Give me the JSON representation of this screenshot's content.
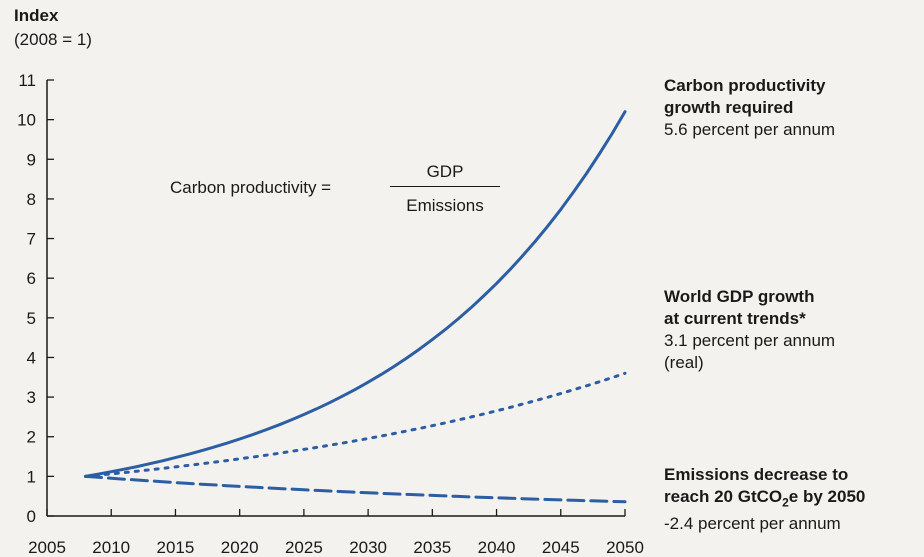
{
  "y_axis_title": {
    "line1": "Index",
    "line2": "(2008 = 1)"
  },
  "formula": {
    "label": "Carbon productivity =",
    "numerator": "GDP",
    "denominator": "Emissions"
  },
  "annotations": {
    "carbon": {
      "title_line1": "Carbon productivity",
      "title_line2": "growth required",
      "detail": "5.6 percent per annum"
    },
    "gdp": {
      "title_line1": "World GDP growth",
      "title_line2": "at current trends*",
      "detail_line1": "3.1 percent per annum",
      "detail_line2": "(real)"
    },
    "emissions": {
      "title_line1": "Emissions decrease to",
      "title_line2_a": "reach 20 GtCO",
      "title_line2_sub": "2",
      "title_line2_b": "e by 2050",
      "detail": "-2.4 percent per annum"
    }
  },
  "colors": {
    "series": "#2b5ea3",
    "axis": "#1a1a1a"
  },
  "chart_data": {
    "type": "line",
    "xlim": [
      2005,
      2050
    ],
    "ylim": [
      0,
      11
    ],
    "x_ticks": [
      2005,
      2010,
      2015,
      2020,
      2025,
      2030,
      2035,
      2040,
      2045,
      2050
    ],
    "y_ticks": [
      0,
      1,
      2,
      3,
      4,
      5,
      6,
      7,
      8,
      9,
      10,
      11
    ],
    "grid": false,
    "series": [
      {
        "line_style": "solid",
        "start_year": 2008,
        "end_year": 2050,
        "start_value": 1,
        "end_value": 10.2,
        "annual_growth_pct": 5.6
      },
      {
        "line_style": "dotted",
        "start_year": 2008,
        "end_year": 2050,
        "start_value": 1,
        "end_value": 3.6,
        "annual_growth_pct": 3.1
      },
      {
        "line_style": "dashed",
        "start_year": 2008,
        "end_year": 2050,
        "start_value": 1,
        "end_value": 0.36,
        "annual_growth_pct": -2.4
      }
    ]
  }
}
